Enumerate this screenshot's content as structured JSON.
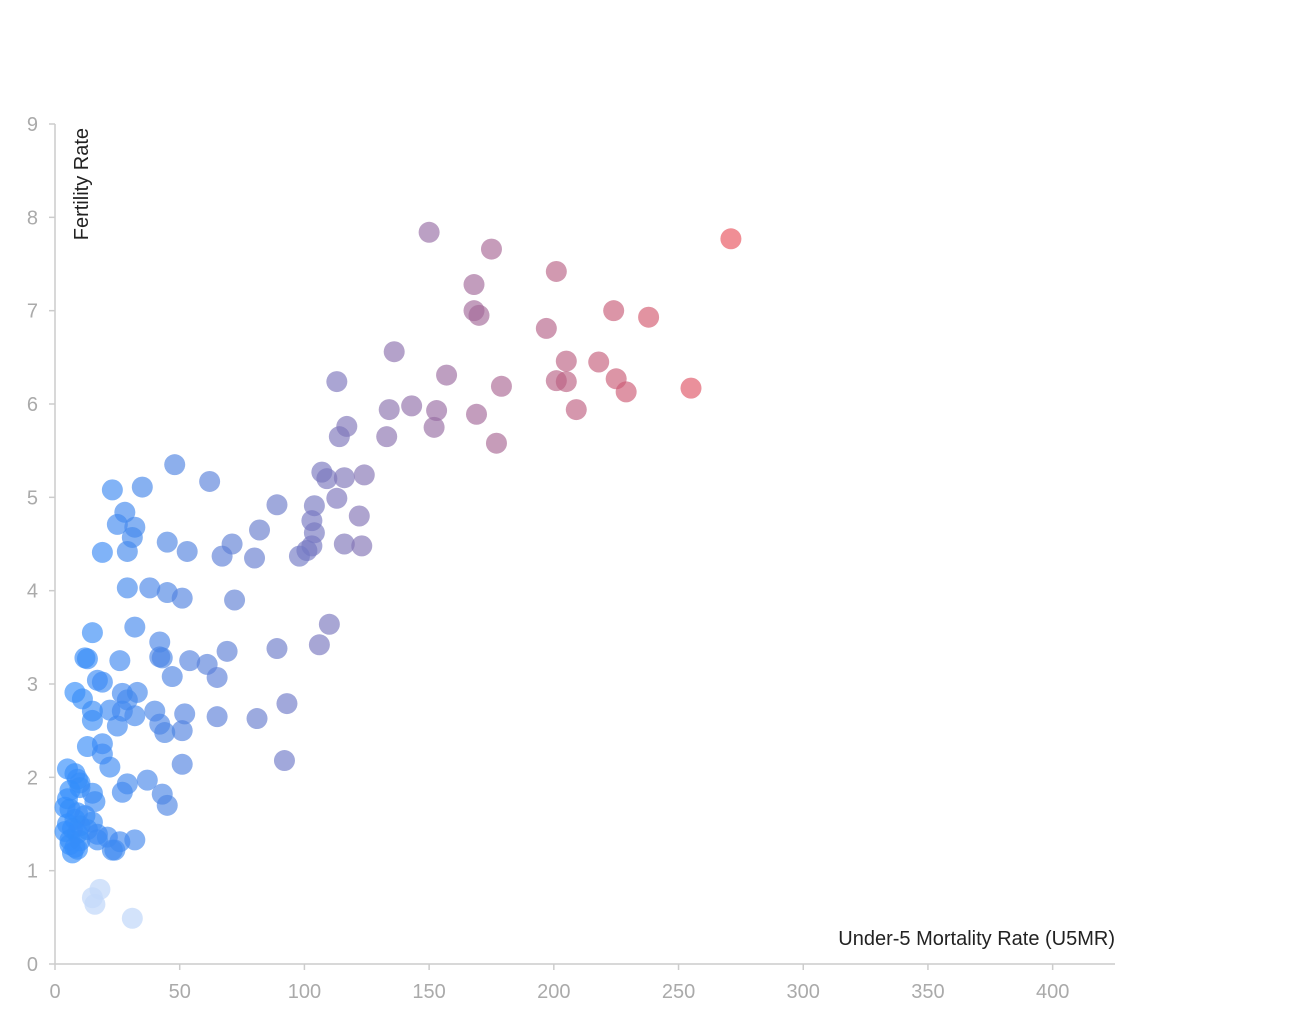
{
  "chart_data": {
    "type": "scatter",
    "xlabel": "Under-5 Mortality Rate (U5MR)",
    "ylabel": "Fertility Rate",
    "xlim": [
      0,
      425
    ],
    "ylim": [
      0,
      9
    ],
    "x_ticks": [
      0,
      50,
      100,
      150,
      200,
      250,
      300,
      350,
      400
    ],
    "y_ticks": [
      0,
      1,
      2,
      3,
      4,
      5,
      6,
      7,
      8,
      9
    ],
    "grid": false,
    "legend": "none",
    "color_scale": {
      "low": "#2f8fff",
      "high": "#e8525c",
      "domain": [
        0,
        270
      ]
    },
    "faded_color": "#c4d9fa",
    "points": [
      [
        150,
        7.84
      ],
      [
        175,
        7.66
      ],
      [
        271,
        7.77
      ],
      [
        201,
        7.42
      ],
      [
        168,
        7.28
      ],
      [
        168,
        7.0
      ],
      [
        170,
        6.95
      ],
      [
        224,
        7.0
      ],
      [
        238,
        6.93
      ],
      [
        197,
        6.81
      ],
      [
        136,
        6.56
      ],
      [
        205,
        6.46
      ],
      [
        218,
        6.45
      ],
      [
        157,
        6.31
      ],
      [
        113,
        6.24
      ],
      [
        201,
        6.25
      ],
      [
        205,
        6.24
      ],
      [
        225,
        6.27
      ],
      [
        229,
        6.13
      ],
      [
        255,
        6.17
      ],
      [
        179,
        6.19
      ],
      [
        143,
        5.98
      ],
      [
        134,
        5.94
      ],
      [
        153,
        5.93
      ],
      [
        169,
        5.89
      ],
      [
        209,
        5.94
      ],
      [
        117,
        5.76
      ],
      [
        152,
        5.75
      ],
      [
        133,
        5.65
      ],
      [
        114,
        5.65
      ],
      [
        177,
        5.58
      ],
      [
        48,
        5.35
      ],
      [
        107,
        5.27
      ],
      [
        109,
        5.2
      ],
      [
        116,
        5.21
      ],
      [
        124,
        5.24
      ],
      [
        62,
        5.17
      ],
      [
        35,
        5.11
      ],
      [
        23,
        5.08
      ],
      [
        89,
        4.92
      ],
      [
        104,
        4.91
      ],
      [
        113,
        4.99
      ],
      [
        122,
        4.8
      ],
      [
        28,
        4.84
      ],
      [
        103,
        4.75
      ],
      [
        25,
        4.71
      ],
      [
        32,
        4.68
      ],
      [
        82,
        4.65
      ],
      [
        104,
        4.62
      ],
      [
        31,
        4.57
      ],
      [
        45,
        4.52
      ],
      [
        71,
        4.5
      ],
      [
        116,
        4.5
      ],
      [
        123,
        4.48
      ],
      [
        103,
        4.48
      ],
      [
        101,
        4.43
      ],
      [
        53,
        4.42
      ],
      [
        29,
        4.42
      ],
      [
        19,
        4.41
      ],
      [
        98,
        4.37
      ],
      [
        67,
        4.37
      ],
      [
        80,
        4.35
      ],
      [
        29,
        4.03
      ],
      [
        38,
        4.03
      ],
      [
        45,
        3.98
      ],
      [
        51,
        3.92
      ],
      [
        72,
        3.9
      ],
      [
        110,
        3.64
      ],
      [
        32,
        3.61
      ],
      [
        15,
        3.55
      ],
      [
        42,
        3.45
      ],
      [
        106,
        3.42
      ],
      [
        89,
        3.38
      ],
      [
        69,
        3.35
      ],
      [
        12,
        3.28
      ],
      [
        13,
        3.27
      ],
      [
        42,
        3.29
      ],
      [
        43,
        3.28
      ],
      [
        54,
        3.25
      ],
      [
        26,
        3.25
      ],
      [
        61,
        3.21
      ],
      [
        65,
        3.07
      ],
      [
        47,
        3.08
      ],
      [
        17,
        3.04
      ],
      [
        19,
        3.02
      ],
      [
        8,
        2.91
      ],
      [
        33,
        2.91
      ],
      [
        27,
        2.9
      ],
      [
        11,
        2.84
      ],
      [
        29,
        2.83
      ],
      [
        93,
        2.79
      ],
      [
        22,
        2.72
      ],
      [
        27,
        2.71
      ],
      [
        15,
        2.71
      ],
      [
        40,
        2.71
      ],
      [
        52,
        2.68
      ],
      [
        32,
        2.66
      ],
      [
        65,
        2.65
      ],
      [
        81,
        2.63
      ],
      [
        15,
        2.61
      ],
      [
        42,
        2.57
      ],
      [
        25,
        2.55
      ],
      [
        51,
        2.5
      ],
      [
        44,
        2.48
      ],
      [
        19,
        2.36
      ],
      [
        13,
        2.33
      ],
      [
        19,
        2.25
      ],
      [
        92,
        2.18
      ],
      [
        22,
        2.11
      ],
      [
        51,
        2.14
      ],
      [
        5,
        2.09
      ],
      [
        8,
        2.04
      ],
      [
        9,
        1.98
      ],
      [
        37,
        1.97
      ],
      [
        10,
        1.94
      ],
      [
        29,
        1.93
      ],
      [
        10,
        1.89
      ],
      [
        6,
        1.86
      ],
      [
        27,
        1.84
      ],
      [
        43,
        1.82
      ],
      [
        15,
        1.83
      ],
      [
        5,
        1.77
      ],
      [
        16,
        1.74
      ],
      [
        45,
        1.7
      ],
      [
        4,
        1.68
      ],
      [
        6,
        1.66
      ],
      [
        9,
        1.62
      ],
      [
        12,
        1.59
      ],
      [
        8,
        1.55
      ],
      [
        15,
        1.52
      ],
      [
        5,
        1.5
      ],
      [
        10,
        1.48
      ],
      [
        7,
        1.45
      ],
      [
        13,
        1.44
      ],
      [
        4,
        1.42
      ],
      [
        9,
        1.4
      ],
      [
        17,
        1.39
      ],
      [
        21,
        1.36
      ],
      [
        32,
        1.33
      ],
      [
        26,
        1.31
      ],
      [
        6,
        1.33
      ],
      [
        10,
        1.32
      ],
      [
        17,
        1.33
      ],
      [
        6,
        1.28
      ],
      [
        8,
        1.25
      ],
      [
        23,
        1.22
      ],
      [
        7,
        1.19
      ],
      [
        24,
        1.22
      ],
      [
        9,
        1.23
      ]
    ],
    "faded_points": [
      [
        18,
        0.8
      ],
      [
        15,
        0.71
      ],
      [
        16,
        0.64
      ],
      [
        31,
        0.49
      ]
    ]
  }
}
